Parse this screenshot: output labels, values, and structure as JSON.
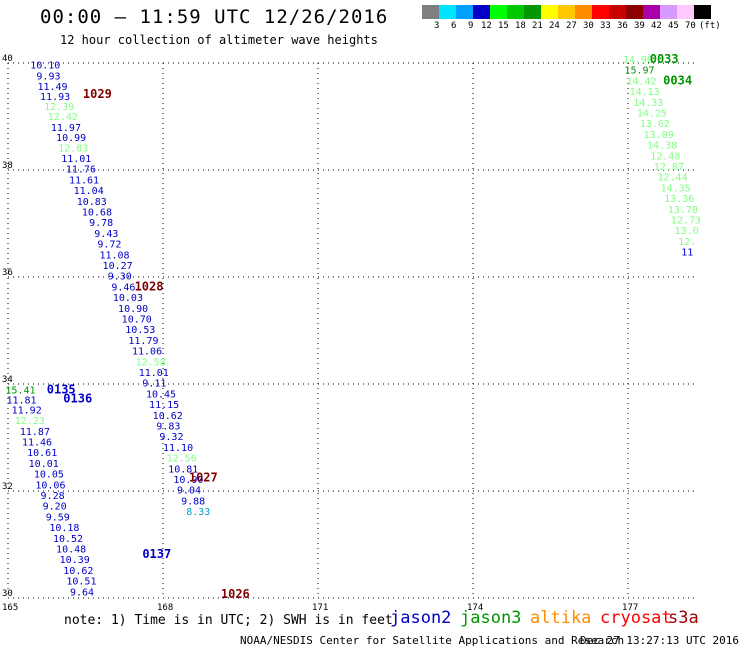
{
  "header": {
    "title": "00:00 – 11:59 UTC 12/26/2016",
    "subtitle": "12 hour collection of altimeter wave heights"
  },
  "legend": {
    "unit": "(ft)",
    "bins": [
      {
        "label": "3",
        "color": "#7f7f7f"
      },
      {
        "label": "6",
        "color": "#00e5ff"
      },
      {
        "label": "9",
        "color": "#00a0ff"
      },
      {
        "label": "12",
        "color": "#0000c8"
      },
      {
        "label": "15",
        "color": "#00ff00"
      },
      {
        "label": "18",
        "color": "#00c800"
      },
      {
        "label": "21",
        "color": "#009600"
      },
      {
        "label": "24",
        "color": "#ffff00"
      },
      {
        "label": "27",
        "color": "#ffc800"
      },
      {
        "label": "30",
        "color": "#ff8c00"
      },
      {
        "label": "33",
        "color": "#ff0000"
      },
      {
        "label": "36",
        "color": "#c80000"
      },
      {
        "label": "39",
        "color": "#8c0000"
      },
      {
        "label": "42",
        "color": "#aa00aa"
      },
      {
        "label": "45",
        "color": "#d79bff"
      },
      {
        "label": "70",
        "color": "#ffc8ff"
      },
      {
        "label": "",
        "color": "#000000"
      }
    ]
  },
  "axes": {
    "lon_ticks": [
      "165",
      "168",
      "171",
      "174",
      "177"
    ],
    "lat_ticks": [
      "40",
      "38",
      "36",
      "34",
      "32",
      "30"
    ]
  },
  "colors": {
    "jason2": "#0000c8",
    "jason3": "#009600",
    "jason3_light": "#80ff80",
    "altika": "#ff8c00",
    "cryosat": "#ff0000",
    "s3a": "#a00000",
    "pass_label": "#800000",
    "cyan": "#00a0c8"
  },
  "passes": [
    {
      "label": "1029",
      "color": "#800000",
      "lon": 166.45,
      "lat": 39.35
    },
    {
      "label": "1028",
      "color": "#800000",
      "lon": 167.45,
      "lat": 35.75
    },
    {
      "label": "1027",
      "color": "#800000",
      "lon": 168.5,
      "lat": 32.18
    },
    {
      "label": "1026",
      "color": "#800000",
      "lon": 169.12,
      "lat": 30.0
    },
    {
      "label": "0135",
      "color": "#0000c8",
      "lon": 165.75,
      "lat": 33.82
    },
    {
      "label": "0136",
      "color": "#0000c8",
      "lon": 166.07,
      "lat": 33.65
    },
    {
      "label": "0137",
      "color": "#0000c8",
      "lon": 167.6,
      "lat": 30.75
    },
    {
      "label": "0033",
      "color": "#009600",
      "lon": 177.42,
      "lat": 40.0
    },
    {
      "label": "0034",
      "color": "#009600",
      "lon": 177.68,
      "lat": 39.6
    }
  ],
  "observations": [
    {
      "v": "10.10",
      "c": "#0000c8",
      "lon": 165.43,
      "lat": 39.9
    },
    {
      "v": "9.93",
      "c": "#0000c8",
      "lon": 165.55,
      "lat": 39.69
    },
    {
      "v": "11.49",
      "c": "#0000c8",
      "lon": 165.57,
      "lat": 39.5
    },
    {
      "v": "11.93",
      "c": "#0000c8",
      "lon": 165.62,
      "lat": 39.31
    },
    {
      "v": "12.39",
      "c": "#80ff80",
      "lon": 165.7,
      "lat": 39.12
    },
    {
      "v": "12.42",
      "c": "#80ff80",
      "lon": 165.77,
      "lat": 38.93
    },
    {
      "v": "11.97",
      "c": "#0000c8",
      "lon": 165.83,
      "lat": 38.73
    },
    {
      "v": "10.99",
      "c": "#0000c8",
      "lon": 165.93,
      "lat": 38.54
    },
    {
      "v": "12.83",
      "c": "#80ff80",
      "lon": 165.97,
      "lat": 38.35
    },
    {
      "v": "11.01",
      "c": "#0000c8",
      "lon": 166.03,
      "lat": 38.15
    },
    {
      "v": "11.76",
      "c": "#0000c8",
      "lon": 166.12,
      "lat": 37.95
    },
    {
      "v": "11.61",
      "c": "#0000c8",
      "lon": 166.18,
      "lat": 37.75
    },
    {
      "v": "11.04",
      "c": "#0000c8",
      "lon": 166.27,
      "lat": 37.55
    },
    {
      "v": "10.83",
      "c": "#0000c8",
      "lon": 166.33,
      "lat": 37.35
    },
    {
      "v": "10.68",
      "c": "#0000c8",
      "lon": 166.43,
      "lat": 37.15
    },
    {
      "v": "9.78",
      "c": "#0000c8",
      "lon": 166.57,
      "lat": 36.95
    },
    {
      "v": "9.43",
      "c": "#0000c8",
      "lon": 166.67,
      "lat": 36.75
    },
    {
      "v": "9.72",
      "c": "#0000c8",
      "lon": 166.73,
      "lat": 36.55
    },
    {
      "v": "11.08",
      "c": "#0000c8",
      "lon": 166.77,
      "lat": 36.35
    },
    {
      "v": "10.27",
      "c": "#0000c8",
      "lon": 166.83,
      "lat": 36.15
    },
    {
      "v": "9.30",
      "c": "#0000c8",
      "lon": 166.93,
      "lat": 35.95
    },
    {
      "v": "9.46",
      "c": "#0000c8",
      "lon": 167.0,
      "lat": 35.75
    },
    {
      "v": "10.03",
      "c": "#0000c8",
      "lon": 167.03,
      "lat": 35.55
    },
    {
      "v": "10.90",
      "c": "#0000c8",
      "lon": 167.13,
      "lat": 35.35
    },
    {
      "v": "10.70",
      "c": "#0000c8",
      "lon": 167.2,
      "lat": 35.15
    },
    {
      "v": "10.53",
      "c": "#0000c8",
      "lon": 167.27,
      "lat": 34.95
    },
    {
      "v": "11.79",
      "c": "#0000c8",
      "lon": 167.33,
      "lat": 34.75
    },
    {
      "v": "11.06",
      "c": "#0000c8",
      "lon": 167.4,
      "lat": 34.55
    },
    {
      "v": "12.58",
      "c": "#80ff80",
      "lon": 167.47,
      "lat": 34.35
    },
    {
      "v": "11.01",
      "c": "#0000c8",
      "lon": 167.53,
      "lat": 34.15
    },
    {
      "v": "9.11",
      "c": "#0000c8",
      "lon": 167.6,
      "lat": 33.95
    },
    {
      "v": "10.45",
      "c": "#0000c8",
      "lon": 167.67,
      "lat": 33.75
    },
    {
      "v": "11.15",
      "c": "#0000c8",
      "lon": 167.73,
      "lat": 33.55
    },
    {
      "v": "10.62",
      "c": "#0000c8",
      "lon": 167.8,
      "lat": 33.35
    },
    {
      "v": "9.83",
      "c": "#0000c8",
      "lon": 167.87,
      "lat": 33.15
    },
    {
      "v": "9.32",
      "c": "#0000c8",
      "lon": 167.93,
      "lat": 32.95
    },
    {
      "v": "11.10",
      "c": "#0000c8",
      "lon": 168.0,
      "lat": 32.75
    },
    {
      "v": "12.56",
      "c": "#80ff80",
      "lon": 168.07,
      "lat": 32.55
    },
    {
      "v": "10.81",
      "c": "#0000c8",
      "lon": 168.1,
      "lat": 32.35
    },
    {
      "v": "10.90",
      "c": "#0000c8",
      "lon": 168.2,
      "lat": 32.15
    },
    {
      "v": "9.04",
      "c": "#0000c8",
      "lon": 168.27,
      "lat": 31.95
    },
    {
      "v": "9.88",
      "c": "#0000c8",
      "lon": 168.35,
      "lat": 31.75
    },
    {
      "v": "8.33",
      "c": "#00a0c8",
      "lon": 168.45,
      "lat": 31.55
    },
    {
      "v": "15.41",
      "c": "#009600",
      "lon": 164.95,
      "lat": 33.82
    },
    {
      "v": "11.81",
      "c": "#0000c8",
      "lon": 164.97,
      "lat": 33.64
    },
    {
      "v": "11.92",
      "c": "#0000c8",
      "lon": 165.07,
      "lat": 33.45
    },
    {
      "v": "12.23",
      "c": "#80ff80",
      "lon": 165.13,
      "lat": 33.25
    },
    {
      "v": "11.87",
      "c": "#0000c8",
      "lon": 165.23,
      "lat": 33.05
    },
    {
      "v": "11.46",
      "c": "#0000c8",
      "lon": 165.27,
      "lat": 32.85
    },
    {
      "v": "10.61",
      "c": "#0000c8",
      "lon": 165.37,
      "lat": 32.65
    },
    {
      "v": "10.01",
      "c": "#0000c8",
      "lon": 165.4,
      "lat": 32.45
    },
    {
      "v": "10.05",
      "c": "#0000c8",
      "lon": 165.5,
      "lat": 32.25
    },
    {
      "v": "10.06",
      "c": "#0000c8",
      "lon": 165.53,
      "lat": 32.05
    },
    {
      "v": "9.28",
      "c": "#0000c8",
      "lon": 165.63,
      "lat": 31.85
    },
    {
      "v": "9.20",
      "c": "#0000c8",
      "lon": 165.67,
      "lat": 31.65
    },
    {
      "v": "9.59",
      "c": "#0000c8",
      "lon": 165.73,
      "lat": 31.45
    },
    {
      "v": "10.18",
      "c": "#0000c8",
      "lon": 165.8,
      "lat": 31.25
    },
    {
      "v": "10.52",
      "c": "#0000c8",
      "lon": 165.87,
      "lat": 31.05
    },
    {
      "v": "10.48",
      "c": "#0000c8",
      "lon": 165.93,
      "lat": 30.85
    },
    {
      "v": "10.39",
      "c": "#0000c8",
      "lon": 166.0,
      "lat": 30.65
    },
    {
      "v": "10.62",
      "c": "#0000c8",
      "lon": 166.07,
      "lat": 30.45
    },
    {
      "v": "10.51",
      "c": "#0000c8",
      "lon": 166.13,
      "lat": 30.25
    },
    {
      "v": "9.64",
      "c": "#0000c8",
      "lon": 166.2,
      "lat": 30.05
    },
    {
      "v": "14.90",
      "c": "#80ff80",
      "lon": 176.9,
      "lat": 40.0
    },
    {
      "v": "15.97",
      "c": "#009600",
      "lon": 176.93,
      "lat": 39.8
    },
    {
      "v": "14.42",
      "c": "#80ff80",
      "lon": 176.97,
      "lat": 39.6
    },
    {
      "v": "14.13",
      "c": "#80ff80",
      "lon": 177.03,
      "lat": 39.4
    },
    {
      "v": "14.33",
      "c": "#80ff80",
      "lon": 177.1,
      "lat": 39.2
    },
    {
      "v": "14.25",
      "c": "#80ff80",
      "lon": 177.17,
      "lat": 39.0
    },
    {
      "v": "13.62",
      "c": "#80ff80",
      "lon": 177.23,
      "lat": 38.8
    },
    {
      "v": "13.09",
      "c": "#80ff80",
      "lon": 177.3,
      "lat": 38.6
    },
    {
      "v": "14.38",
      "c": "#80ff80",
      "lon": 177.37,
      "lat": 38.4
    },
    {
      "v": "12.48",
      "c": "#80ff80",
      "lon": 177.43,
      "lat": 38.2
    },
    {
      "v": "12.87",
      "c": "#80ff80",
      "lon": 177.5,
      "lat": 38.0
    },
    {
      "v": "12.44",
      "c": "#80ff80",
      "lon": 177.57,
      "lat": 37.8
    },
    {
      "v": "14.35",
      "c": "#80ff80",
      "lon": 177.63,
      "lat": 37.6
    },
    {
      "v": "13.36",
      "c": "#80ff80",
      "lon": 177.7,
      "lat": 37.4
    },
    {
      "v": "13.70",
      "c": "#80ff80",
      "lon": 177.77,
      "lat": 37.2
    },
    {
      "v": "12.73",
      "c": "#80ff80",
      "lon": 177.83,
      "lat": 37.0
    },
    {
      "v": "13.0",
      "c": "#80ff80",
      "lon": 177.9,
      "lat": 36.8
    },
    {
      "v": "12.",
      "c": "#80ff80",
      "lon": 177.97,
      "lat": 36.6
    },
    {
      "v": "11",
      "c": "#0000c8",
      "lon": 178.03,
      "lat": 36.4
    }
  ],
  "footer": {
    "note": "note: 1) Time is in UTC; 2) SWH is in feet",
    "satellites": [
      {
        "name": "jason2",
        "color": "#0000c8"
      },
      {
        "name": "jason3",
        "color": "#009600"
      },
      {
        "name": "altika",
        "color": "#ff8c00"
      },
      {
        "name": "cryosat",
        "color": "#ff0000"
      },
      {
        "name": "s3a",
        "color": "#a00000"
      }
    ],
    "credit": "NOAA/NESDIS Center for Satellite Applications and Research",
    "timestamp": "Dec 27 13:27:13 UTC 2016"
  }
}
